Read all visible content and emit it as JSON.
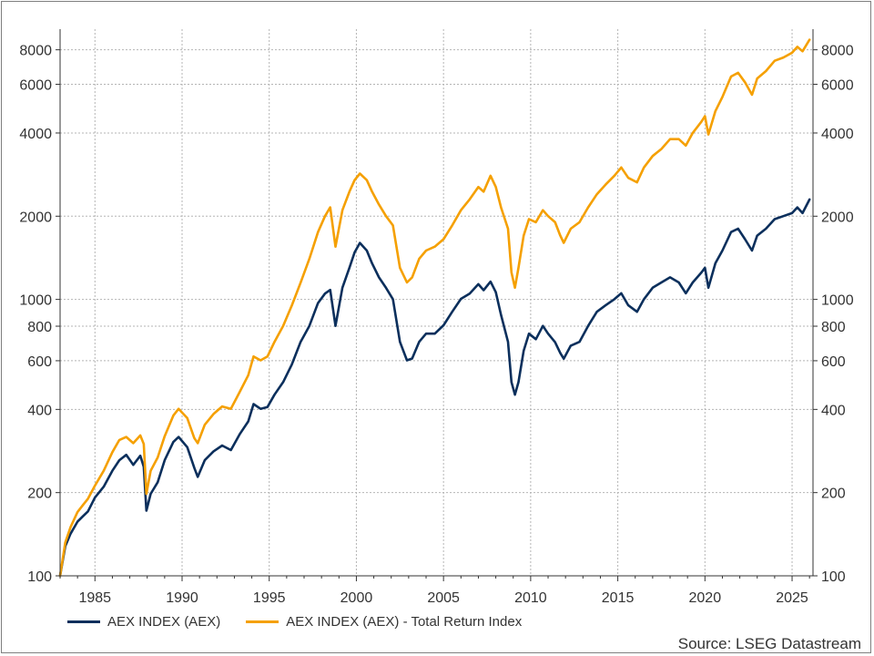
{
  "chart_data": {
    "type": "line",
    "title": "",
    "xlabel": "",
    "ylabel": "",
    "x_range": [
      1983.0,
      2026.2
    ],
    "y_scale": "log",
    "ylim": [
      100,
      9500
    ],
    "x_ticks": [
      "1985",
      "1990",
      "1995",
      "2000",
      "2005",
      "2010",
      "2015",
      "2020",
      "2025"
    ],
    "x_tick_values": [
      1985,
      1990,
      1995,
      2000,
      2005,
      2010,
      2015,
      2020,
      2025
    ],
    "y_ticks": [
      "100",
      "200",
      "400",
      "600",
      "800",
      "1000",
      "2000",
      "4000",
      "6000",
      "8000"
    ],
    "y_tick_values": [
      100,
      200,
      400,
      600,
      800,
      1000,
      2000,
      4000,
      6000,
      8000
    ],
    "grid": true,
    "legend_position": "bottom-left",
    "series": [
      {
        "name": "AEX INDEX (AEX)",
        "color": "#0b2f5c",
        "x": [
          1983.0,
          1983.3,
          1983.6,
          1984.0,
          1984.3,
          1984.6,
          1985.0,
          1985.5,
          1986.0,
          1986.4,
          1986.8,
          1987.2,
          1987.6,
          1987.8,
          1987.95,
          1988.2,
          1988.6,
          1989.0,
          1989.5,
          1989.8,
          1990.3,
          1990.7,
          1990.9,
          1991.3,
          1991.8,
          1992.3,
          1992.8,
          1993.3,
          1993.8,
          1994.1,
          1994.5,
          1994.9,
          1995.3,
          1995.8,
          1996.3,
          1996.8,
          1997.3,
          1997.8,
          1998.2,
          1998.5,
          1998.8,
          1999.2,
          1999.6,
          1999.9,
          2000.2,
          2000.6,
          2000.9,
          2001.3,
          2001.7,
          2002.1,
          2002.5,
          2002.9,
          2003.2,
          2003.6,
          2004.0,
          2004.5,
          2005.0,
          2005.5,
          2006.0,
          2006.5,
          2007.0,
          2007.3,
          2007.7,
          2008.0,
          2008.3,
          2008.7,
          2008.9,
          2009.1,
          2009.3,
          2009.6,
          2009.9,
          2010.3,
          2010.7,
          2011.0,
          2011.4,
          2011.7,
          2011.9,
          2012.3,
          2012.8,
          2013.3,
          2013.8,
          2014.3,
          2014.8,
          2015.2,
          2015.6,
          2016.1,
          2016.5,
          2017.0,
          2017.5,
          2018.0,
          2018.5,
          2018.9,
          2019.3,
          2019.8,
          2020.0,
          2020.2,
          2020.6,
          2021.0,
          2021.5,
          2021.9,
          2022.3,
          2022.7,
          2023.0,
          2023.5,
          2024.0,
          2024.5,
          2025.0,
          2025.3,
          2025.6,
          2026.0
        ],
        "values": [
          100,
          128,
          142,
          157,
          164,
          171,
          192,
          210,
          240,
          262,
          274,
          252,
          272,
          248,
          172,
          198,
          218,
          262,
          305,
          318,
          292,
          246,
          228,
          262,
          282,
          296,
          285,
          325,
          362,
          418,
          402,
          408,
          452,
          502,
          582,
          702,
          802,
          970,
          1050,
          1082,
          802,
          1102,
          1302,
          1480,
          1601,
          1502,
          1350,
          1201,
          1101,
          1002,
          702,
          602,
          611,
          702,
          752,
          752,
          806,
          902,
          1005,
          1050,
          1135,
          1080,
          1160,
          1062,
          880,
          702,
          502,
          452,
          502,
          652,
          752,
          718,
          802,
          752,
          700,
          640,
          610,
          680,
          702,
          802,
          902,
          952,
          1002,
          1052,
          952,
          902,
          1002,
          1102,
          1152,
          1202,
          1152,
          1052,
          1152,
          1252,
          1302,
          1102,
          1352,
          1502,
          1752,
          1802,
          1652,
          1502,
          1702,
          1802,
          1952,
          2002,
          2052,
          2152,
          2052,
          2300
        ]
      },
      {
        "name": "AEX INDEX (AEX) - Total Return Index",
        "color": "#f5a000",
        "x": [
          1983.0,
          1983.3,
          1983.6,
          1984.0,
          1984.3,
          1984.6,
          1985.0,
          1985.5,
          1986.0,
          1986.4,
          1986.8,
          1987.2,
          1987.6,
          1987.8,
          1987.95,
          1988.2,
          1988.6,
          1989.0,
          1989.5,
          1989.8,
          1990.3,
          1990.7,
          1990.9,
          1991.3,
          1991.8,
          1992.3,
          1992.8,
          1993.3,
          1993.8,
          1994.1,
          1994.5,
          1994.9,
          1995.3,
          1995.8,
          1996.3,
          1996.8,
          1997.3,
          1997.8,
          1998.2,
          1998.5,
          1998.8,
          1999.2,
          1999.6,
          1999.9,
          2000.2,
          2000.6,
          2000.9,
          2001.3,
          2001.7,
          2002.1,
          2002.5,
          2002.9,
          2003.2,
          2003.6,
          2004.0,
          2004.5,
          2005.0,
          2005.5,
          2006.0,
          2006.5,
          2007.0,
          2007.3,
          2007.7,
          2008.0,
          2008.3,
          2008.7,
          2008.9,
          2009.1,
          2009.3,
          2009.6,
          2009.9,
          2010.3,
          2010.7,
          2011.0,
          2011.4,
          2011.7,
          2011.9,
          2012.3,
          2012.8,
          2013.3,
          2013.8,
          2014.3,
          2014.8,
          2015.2,
          2015.6,
          2016.1,
          2016.5,
          2017.0,
          2017.5,
          2018.0,
          2018.5,
          2018.9,
          2019.3,
          2019.8,
          2020.0,
          2020.2,
          2020.6,
          2021.0,
          2021.5,
          2021.9,
          2022.3,
          2022.7,
          2023.0,
          2023.5,
          2024.0,
          2024.5,
          2025.0,
          2025.3,
          2025.6,
          2026.0
        ],
        "values": [
          100,
          132,
          150,
          170,
          180,
          190,
          212,
          240,
          280,
          310,
          318,
          302,
          322,
          300,
          198,
          240,
          268,
          320,
          380,
          402,
          372,
          315,
          302,
          352,
          385,
          410,
          402,
          462,
          532,
          622,
          602,
          622,
          702,
          802,
          952,
          1150,
          1402,
          1752,
          2002,
          2152,
          1552,
          2102,
          2452,
          2702,
          2852,
          2702,
          2452,
          2202,
          2002,
          1852,
          1302,
          1152,
          1202,
          1402,
          1502,
          1552,
          1652,
          1852,
          2102,
          2302,
          2552,
          2452,
          2802,
          2552,
          2152,
          1802,
          1252,
          1102,
          1302,
          1702,
          1952,
          1902,
          2102,
          2002,
          1902,
          1702,
          1602,
          1802,
          1902,
          2152,
          2402,
          2602,
          2802,
          3002,
          2752,
          2652,
          3002,
          3302,
          3502,
          3802,
          3802,
          3602,
          4002,
          4402,
          4602,
          3952,
          4802,
          5402,
          6402,
          6602,
          6102,
          5502,
          6302,
          6702,
          7302,
          7502,
          7802,
          8202,
          7902,
          8702
        ]
      }
    ]
  },
  "legend": {
    "item1": "AEX INDEX (AEX)",
    "item2": "AEX INDEX (AEX) - Total Return Index"
  },
  "source": "Source: LSEG Datastream"
}
